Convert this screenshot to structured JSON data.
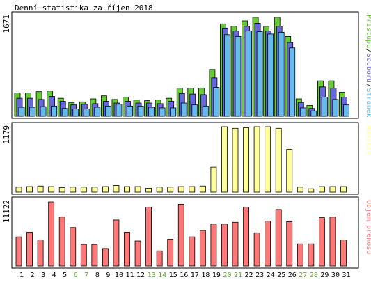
{
  "title": "Denní statistika za říjen 2018",
  "colors": {
    "hits": "#66cc33",
    "files": "#6666dd",
    "pages": "#66bbee",
    "visits": "#ffff99",
    "kbytes": "#ff7777",
    "weekend": "#66aa33",
    "border": "#000000"
  },
  "chart_data": [
    {
      "type": "bar",
      "panel": "traffic",
      "ymax_label": "1671",
      "ylim": [
        0,
        1671
      ],
      "categories": [
        "1",
        "2",
        "3",
        "4",
        "5",
        "6",
        "7",
        "8",
        "9",
        "10",
        "11",
        "12",
        "13",
        "14",
        "15",
        "16",
        "17",
        "18",
        "19",
        "20",
        "21",
        "22",
        "23",
        "24",
        "25",
        "26",
        "27",
        "28",
        "29",
        "30",
        "31"
      ],
      "weekend_days": [
        "6",
        "7",
        "13",
        "14",
        "20",
        "21",
        "27",
        "28"
      ],
      "legend_right": [
        {
          "label": "Přístupů",
          "color": "#66cc33"
        },
        {
          "label": "Souborů",
          "color": "#6666dd"
        },
        {
          "label": "Stránek",
          "color": "#66bbee"
        }
      ],
      "series": [
        {
          "name": "Přístupů",
          "values": [
            390,
            390,
            410,
            420,
            300,
            230,
            240,
            290,
            340,
            280,
            320,
            270,
            260,
            270,
            300,
            470,
            470,
            470,
            780,
            1540,
            1500,
            1590,
            1650,
            1500,
            1650,
            1330,
            290,
            180,
            590,
            590,
            400
          ]
        },
        {
          "name": "Souborů",
          "values": [
            300,
            300,
            280,
            330,
            250,
            190,
            200,
            210,
            250,
            220,
            250,
            220,
            220,
            210,
            250,
            380,
            370,
            360,
            640,
            1470,
            1420,
            1500,
            1550,
            1420,
            1500,
            1230,
            230,
            130,
            490,
            470,
            320
          ]
        },
        {
          "name": "Stránek",
          "values": [
            150,
            150,
            160,
            170,
            130,
            120,
            120,
            150,
            170,
            200,
            170,
            170,
            150,
            140,
            140,
            220,
            190,
            170,
            480,
            1360,
            1330,
            1420,
            1410,
            1370,
            1400,
            1140,
            140,
            90,
            320,
            280,
            190
          ]
        }
      ]
    },
    {
      "type": "bar",
      "panel": "visits",
      "ymax_label": "1179",
      "ylim": [
        0,
        1179
      ],
      "legend_right": [
        {
          "label": "Návštěv",
          "color": "#ffff99"
        }
      ],
      "series": [
        {
          "name": "Návštěv",
          "values": [
            90,
            100,
            110,
            100,
            80,
            90,
            90,
            90,
            100,
            120,
            100,
            100,
            70,
            90,
            90,
            100,
            100,
            110,
            450,
            1179,
            1150,
            1160,
            1179,
            1179,
            1150,
            770,
            90,
            60,
            100,
            100,
            100
          ]
        }
      ]
    },
    {
      "type": "bar",
      "panel": "kbytes",
      "ymax_label": "11122",
      "ylim": [
        0,
        11122
      ],
      "legend_right": [
        {
          "label": "Objem přenosu",
          "color": "#ff7777"
        }
      ],
      "series": [
        {
          "name": "Objem přenosu",
          "values": [
            5000,
            5800,
            4500,
            11000,
            8400,
            6600,
            3700,
            3700,
            3000,
            7900,
            5800,
            4300,
            10100,
            2600,
            4600,
            10600,
            5000,
            6100,
            7200,
            7200,
            7500,
            10100,
            5700,
            7700,
            9700,
            7600,
            3800,
            3800,
            8300,
            8400,
            4500
          ]
        }
      ]
    }
  ]
}
